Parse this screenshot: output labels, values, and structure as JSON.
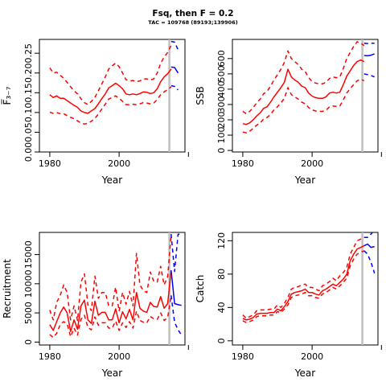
{
  "title": "Fsq, then F = 0.2",
  "subtitle": "TAC = 109768 (89193;139906)",
  "colors": {
    "historic": "#ff0000",
    "projection": "#0000ff",
    "marker": "#c0c0c0"
  },
  "chart_data": [
    {
      "id": "fbar",
      "type": "line",
      "xlabel": "Year",
      "ylabel": "F̅₃₋₇",
      "xlim": [
        1977,
        2019
      ],
      "ylim": [
        0,
        0.285
      ],
      "xticks": [
        1980,
        2000
      ],
      "xtick_labels": [
        "1980",
        "2000"
      ],
      "yticks": [
        0,
        0.05,
        0.1,
        0.15,
        0.2,
        0.25
      ],
      "ytick_labels": [
        "0.00",
        "0.05",
        "0.10",
        "0.15",
        "0.20",
        "0.25"
      ],
      "marker_year": 2014.5,
      "historic": {
        "x": [
          1980,
          1981,
          1982,
          1983,
          1984,
          1985,
          1986,
          1987,
          1988,
          1989,
          1990,
          1991,
          1992,
          1993,
          1994,
          1995,
          1996,
          1997,
          1998,
          1999,
          2000,
          2001,
          2002,
          2003,
          2004,
          2005,
          2006,
          2007,
          2008,
          2009,
          2010,
          2011,
          2012,
          2013,
          2014,
          2015
        ],
        "mid": [
          0.145,
          0.138,
          0.142,
          0.136,
          0.136,
          0.13,
          0.124,
          0.118,
          0.113,
          0.104,
          0.1,
          0.098,
          0.104,
          0.11,
          0.122,
          0.135,
          0.147,
          0.162,
          0.168,
          0.174,
          0.168,
          0.16,
          0.147,
          0.145,
          0.147,
          0.145,
          0.148,
          0.152,
          0.151,
          0.148,
          0.15,
          0.16,
          0.178,
          0.19,
          0.198,
          0.21
        ],
        "lower": [
          0.101,
          0.098,
          0.1,
          0.097,
          0.097,
          0.092,
          0.088,
          0.084,
          0.079,
          0.073,
          0.071,
          0.072,
          0.078,
          0.085,
          0.096,
          0.109,
          0.121,
          0.134,
          0.138,
          0.142,
          0.136,
          0.128,
          0.12,
          0.12,
          0.121,
          0.12,
          0.122,
          0.125,
          0.124,
          0.122,
          0.124,
          0.133,
          0.145,
          0.152,
          0.158,
          0.165
        ],
        "upper": [
          0.213,
          0.2,
          0.202,
          0.194,
          0.187,
          0.176,
          0.165,
          0.155,
          0.147,
          0.135,
          0.125,
          0.12,
          0.128,
          0.138,
          0.155,
          0.172,
          0.19,
          0.21,
          0.218,
          0.225,
          0.216,
          0.2,
          0.183,
          0.18,
          0.181,
          0.178,
          0.18,
          0.185,
          0.185,
          0.182,
          0.185,
          0.2,
          0.225,
          0.24,
          0.252,
          0.27
        ]
      },
      "projection": {
        "x": [
          2015,
          2016,
          2017
        ],
        "mid": [
          0.215,
          0.214,
          0.2
        ],
        "lower": [
          0.168,
          0.166,
          0.157
        ],
        "upper": [
          0.28,
          0.278,
          0.259
        ]
      }
    },
    {
      "id": "ssb",
      "type": "line",
      "xlabel": "Year",
      "ylabel": "SSB",
      "xlim": [
        1977,
        2019
      ],
      "ylim": [
        -10,
        725
      ],
      "xticks": [
        1980,
        2000
      ],
      "xtick_labels": [
        "1980",
        "2000"
      ],
      "yticks": [
        0,
        100,
        200,
        300,
        400,
        500,
        600
      ],
      "ytick_labels": [
        "0",
        "100",
        "200",
        "300",
        "400",
        "500",
        "600"
      ],
      "marker_year": 2014.5,
      "historic": {
        "x": [
          1980,
          1981,
          1982,
          1983,
          1984,
          1985,
          1986,
          1987,
          1988,
          1989,
          1990,
          1991,
          1992,
          1993,
          1994,
          1995,
          1996,
          1997,
          1998,
          1999,
          2000,
          2001,
          2002,
          2003,
          2004,
          2005,
          2006,
          2007,
          2008,
          2009,
          2010,
          2011,
          2012,
          2013,
          2014,
          2015
        ],
        "mid": [
          175,
          170,
          180,
          200,
          225,
          245,
          275,
          285,
          315,
          350,
          380,
          410,
          445,
          530,
          480,
          460,
          445,
          420,
          410,
          375,
          355,
          345,
          340,
          340,
          350,
          375,
          380,
          375,
          380,
          430,
          485,
          520,
          555,
          580,
          590,
          580
        ],
        "lower": [
          120,
          115,
          125,
          145,
          165,
          180,
          205,
          215,
          235,
          265,
          285,
          310,
          340,
          410,
          365,
          350,
          335,
          315,
          305,
          280,
          265,
          258,
          255,
          255,
          262,
          285,
          290,
          288,
          290,
          330,
          375,
          405,
          430,
          455,
          465,
          455
        ],
        "upper": [
          255,
          240,
          255,
          280,
          310,
          335,
          370,
          385,
          420,
          460,
          495,
          530,
          575,
          650,
          600,
          580,
          560,
          530,
          515,
          475,
          450,
          440,
          435,
          435,
          445,
          470,
          480,
          475,
          480,
          535,
          600,
          640,
          680,
          710,
          700,
          685
        ]
      },
      "projection": {
        "x": [
          2015,
          2016,
          2017,
          2018
        ],
        "mid": [
          620,
          618,
          622,
          630
        ],
        "lower": [
          500,
          495,
          490,
          480
        ],
        "upper": [
          700,
          698,
          700,
          700
        ]
      }
    },
    {
      "id": "recruitment",
      "type": "line",
      "xlabel": "Year",
      "ylabel": "Recruitment",
      "xlim": [
        1977,
        2019
      ],
      "ylim": [
        -500,
        18800
      ],
      "xticks": [
        1980,
        2000
      ],
      "xtick_labels": [
        "1980",
        "2000"
      ],
      "yticks": [
        0,
        5000,
        10000,
        15000
      ],
      "ytick_labels": [
        "0",
        "5000",
        "10000",
        "15000"
      ],
      "marker_year": 2014.5,
      "historic": {
        "x": [
          1980,
          1981,
          1982,
          1983,
          1984,
          1985,
          1986,
          1987,
          1988,
          1989,
          1990,
          1991,
          1992,
          1993,
          1994,
          1995,
          1996,
          1997,
          1998,
          1999,
          2000,
          2001,
          2002,
          2003,
          2004,
          2005,
          2006,
          2007,
          2008,
          2009,
          2010,
          2011,
          2012,
          2013,
          2014,
          2015
        ],
        "mid": [
          3000,
          2000,
          3500,
          5000,
          6000,
          5000,
          1800,
          3800,
          2200,
          6200,
          7200,
          3800,
          3200,
          7000,
          4600,
          5100,
          5100,
          3800,
          3800,
          5700,
          3300,
          5200,
          4000,
          5600,
          3800,
          8500,
          5800,
          5300,
          5100,
          6800,
          6100,
          6000,
          7800,
          5800,
          6600,
          12300
        ],
        "lower": [
          1300,
          800,
          1500,
          3000,
          3500,
          3100,
          900,
          2400,
          1200,
          3900,
          4600,
          2500,
          2100,
          4300,
          2900,
          3300,
          3300,
          2400,
          2400,
          3600,
          2000,
          3300,
          2500,
          3500,
          2400,
          5300,
          3700,
          3400,
          3300,
          4400,
          4000,
          3900,
          5000,
          3700,
          4200,
          8000
        ],
        "upper": [
          5500,
          3800,
          6800,
          8000,
          9800,
          8500,
          3800,
          6200,
          3700,
          10300,
          11700,
          6400,
          5400,
          11300,
          7500,
          8500,
          8500,
          6200,
          6200,
          9400,
          5300,
          8500,
          6500,
          8700,
          6200,
          15200,
          9800,
          8800,
          8500,
          12000,
          10400,
          10300,
          13000,
          9800,
          11200,
          18500
        ]
      },
      "projection": {
        "x": [
          2015,
          2016,
          2017,
          2018
        ],
        "mid": [
          12300,
          6600,
          6400,
          6300
        ],
        "lower": [
          8000,
          3400,
          2100,
          1200
        ],
        "upper": [
          18500,
          12100,
          18500,
          18500
        ]
      }
    },
    {
      "id": "catch",
      "type": "line",
      "xlabel": "Year",
      "ylabel": "Catch",
      "xlim": [
        1977,
        2019
      ],
      "ylim": [
        -5,
        130
      ],
      "xticks": [
        1980,
        2000
      ],
      "xtick_labels": [
        "1980",
        "2000"
      ],
      "yticks": [
        0,
        40,
        80,
        120
      ],
      "ytick_labels": [
        "0",
        "40",
        "80",
        "120"
      ],
      "marker_year": 2014.5,
      "historic": {
        "x": [
          1980,
          1981,
          1982,
          1983,
          1984,
          1985,
          1986,
          1987,
          1988,
          1989,
          1990,
          1991,
          1992,
          1993,
          1994,
          1995,
          1996,
          1997,
          1998,
          1999,
          2000,
          2001,
          2002,
          2003,
          2004,
          2005,
          2006,
          2007,
          2008,
          2009,
          2010,
          2011,
          2012,
          2013,
          2014,
          2015
        ],
        "mid": [
          27,
          25,
          26,
          28,
          32,
          33,
          33,
          33,
          34,
          34,
          38,
          36,
          41,
          47,
          56,
          58,
          59,
          60,
          62,
          58,
          58,
          56,
          55,
          60,
          62,
          65,
          68,
          66,
          70,
          74,
          80,
          96,
          104,
          110,
          112,
          114
        ],
        "lower": [
          24,
          22,
          23,
          25,
          29,
          30,
          30,
          30,
          31,
          31,
          35,
          34,
          38,
          43,
          52,
          54,
          55,
          56,
          58,
          54,
          54,
          52,
          51,
          56,
          58,
          61,
          64,
          62,
          66,
          70,
          75,
          90,
          98,
          104,
          106,
          108
        ],
        "upper": [
          31,
          27,
          29,
          31,
          36,
          37,
          37,
          37,
          38,
          38,
          43,
          40,
          45,
          52,
          62,
          64,
          65,
          67,
          68,
          64,
          64,
          62,
          60,
          66,
          68,
          71,
          75,
          72,
          78,
          82,
          88,
          104,
          112,
          120,
          122,
          124
        ]
      },
      "projection": {
        "x": [
          2015,
          2016,
          2017,
          2018
        ],
        "mid": [
          114,
          116,
          112,
          113
        ],
        "lower": [
          108,
          104,
          94,
          81
        ],
        "upper": [
          124,
          124,
          128,
          133
        ]
      }
    }
  ]
}
